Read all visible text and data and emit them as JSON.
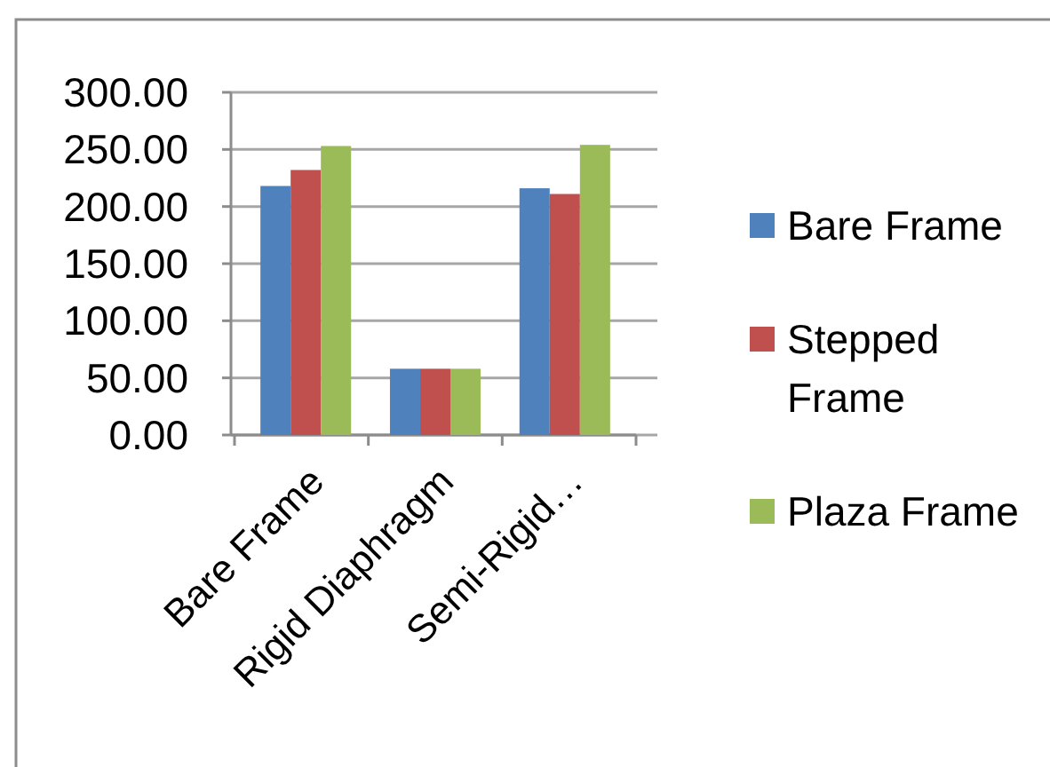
{
  "chart_data": {
    "type": "bar",
    "categories": [
      "Bare Frame",
      "Rigid Diaphragm",
      "Semi-Rigid…"
    ],
    "series": [
      {
        "name": "Bare Frame",
        "color": "#4f81bd",
        "values": [
          218,
          58,
          216
        ]
      },
      {
        "name": "Stepped Frame",
        "color": "#c0504d",
        "values": [
          232,
          58,
          211
        ]
      },
      {
        "name": "Plaza Frame",
        "color": "#9bbb59",
        "values": [
          253,
          58,
          254
        ]
      }
    ],
    "ylim": [
      0,
      300
    ],
    "yticks": [
      {
        "value": 0,
        "label": "0.00"
      },
      {
        "value": 50,
        "label": "50.00"
      },
      {
        "value": 100,
        "label": "100.00"
      },
      {
        "value": 150,
        "label": "150.00"
      },
      {
        "value": 200,
        "label": "200.00"
      },
      {
        "value": 250,
        "label": "250.00"
      },
      {
        "value": 300,
        "label": "300.00"
      }
    ],
    "grid": "y",
    "legend": "right"
  }
}
